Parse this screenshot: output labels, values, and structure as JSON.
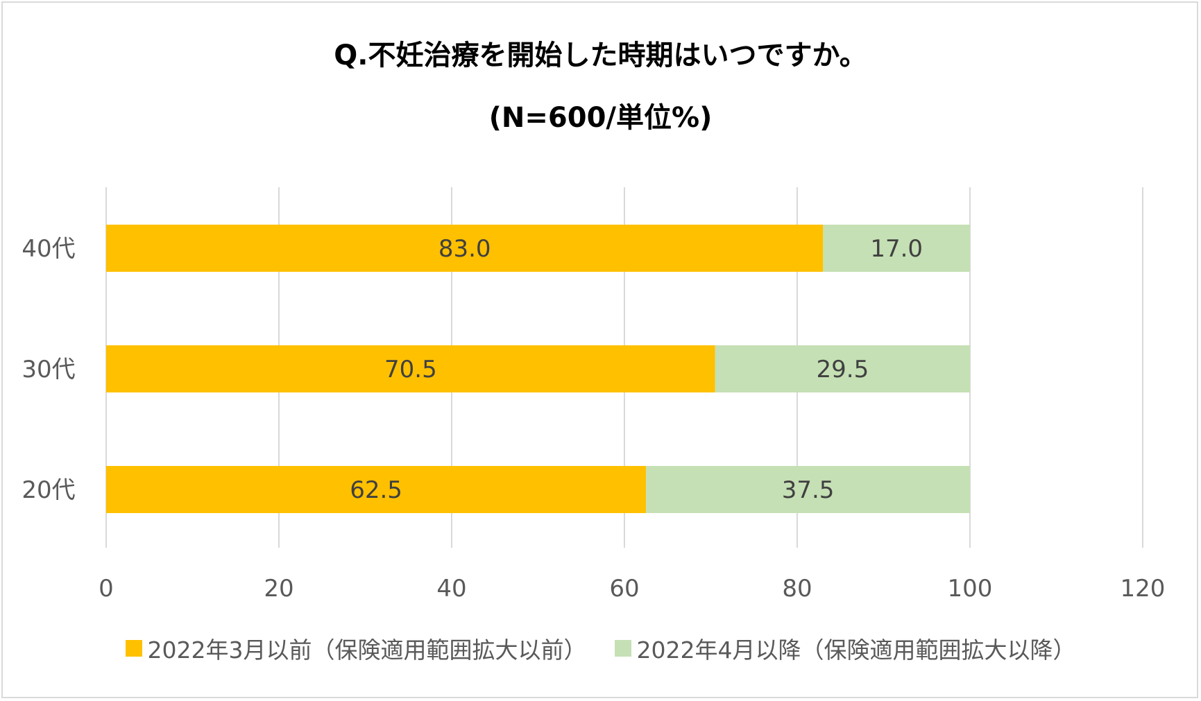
{
  "chart_data": {
    "type": "bar",
    "orientation": "horizontal",
    "stacked": true,
    "title": "Q.不妊治療を開始した時期はいつですか。",
    "subtitle": "(N=600/単位%)",
    "categories": [
      "40代",
      "30代",
      "20代"
    ],
    "series": [
      {
        "name": "2022年3月以前（保険適用範囲拡大以前）",
        "color": "#FFC000",
        "values": [
          83.0,
          70.5,
          62.5
        ],
        "labels": [
          "83.0",
          "70.5",
          "62.5"
        ]
      },
      {
        "name": "2022年4月以降（保険適用範囲拡大以降）",
        "color": "#C5E0B4",
        "values": [
          17.0,
          29.5,
          37.5
        ],
        "labels": [
          "17.0",
          "29.5",
          "37.5"
        ]
      }
    ],
    "xlim": [
      0,
      120
    ],
    "xticks": [
      0,
      20,
      40,
      60,
      80,
      100,
      120
    ],
    "xtick_labels": [
      "0",
      "20",
      "40",
      "60",
      "80",
      "100",
      "120"
    ],
    "grid": true,
    "legend_position": "bottom"
  }
}
